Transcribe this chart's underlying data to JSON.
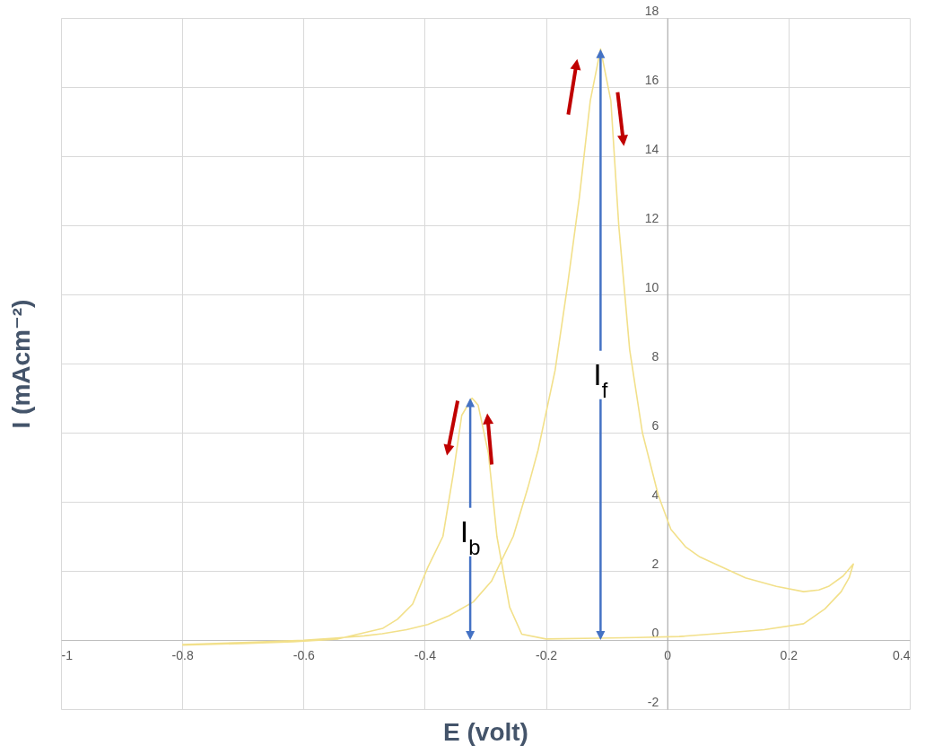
{
  "chart_data": {
    "type": "line",
    "xlabel": "E (volt)",
    "ylabel": "I (mAcm⁻²)",
    "xlim": [
      -1,
      0.4
    ],
    "xticks": [
      -1,
      -0.8,
      -0.6,
      -0.4,
      -0.2,
      0,
      0.2,
      0.4
    ],
    "ylim": [
      -2,
      18
    ],
    "yticks": [
      -2,
      0,
      2,
      4,
      6,
      8,
      10,
      12,
      14,
      16,
      18
    ],
    "grid": true,
    "series": [
      {
        "color": "#f2e08a",
        "x": [
          -0.8,
          -0.7,
          -0.6,
          -0.55,
          -0.5,
          -0.47,
          -0.43,
          -0.395,
          -0.36,
          -0.32,
          -0.29,
          -0.254,
          -0.23,
          -0.213,
          -0.185,
          -0.165,
          -0.145,
          -0.127,
          -0.11,
          -0.093,
          -0.08,
          -0.062,
          -0.041,
          -0.015,
          0.006,
          0.03,
          0.054,
          0.129,
          0.18,
          0.225,
          0.25,
          0.266,
          0.29,
          0.307,
          0.3,
          0.287,
          0.26,
          0.225,
          0.16,
          0.08,
          0.02,
          -0.05,
          -0.117,
          -0.2,
          -0.24,
          -0.26,
          -0.281,
          -0.295,
          -0.312,
          -0.322,
          -0.339,
          -0.353,
          -0.37,
          -0.395,
          -0.42,
          -0.445,
          -0.469,
          -0.543,
          -0.617,
          -0.7,
          -0.8
        ],
        "values": [
          -0.13,
          -0.07,
          -0.01,
          0.05,
          0.12,
          0.18,
          0.3,
          0.45,
          0.7,
          1.1,
          1.7,
          3.0,
          4.4,
          5.5,
          7.8,
          10.2,
          12.8,
          15.6,
          17.1,
          15.6,
          12.0,
          8.4,
          6.0,
          4.2,
          3.2,
          2.7,
          2.4,
          1.8,
          1.55,
          1.4,
          1.45,
          1.55,
          1.85,
          2.2,
          1.8,
          1.4,
          0.9,
          0.47,
          0.3,
          0.18,
          0.1,
          0.07,
          0.05,
          0.03,
          0.17,
          0.95,
          3.0,
          5.4,
          6.8,
          7.0,
          6.5,
          4.8,
          3.0,
          2.1,
          1.04,
          0.6,
          0.34,
          0.03,
          -0.05,
          -0.1,
          -0.15
        ]
      }
    ],
    "annotations": [
      {
        "text": "I$_{b}$",
        "x": -0.325,
        "y": 7.0
      },
      {
        "text": "I$_{f}$",
        "x": -0.11,
        "y": 17.1
      }
    ]
  }
}
